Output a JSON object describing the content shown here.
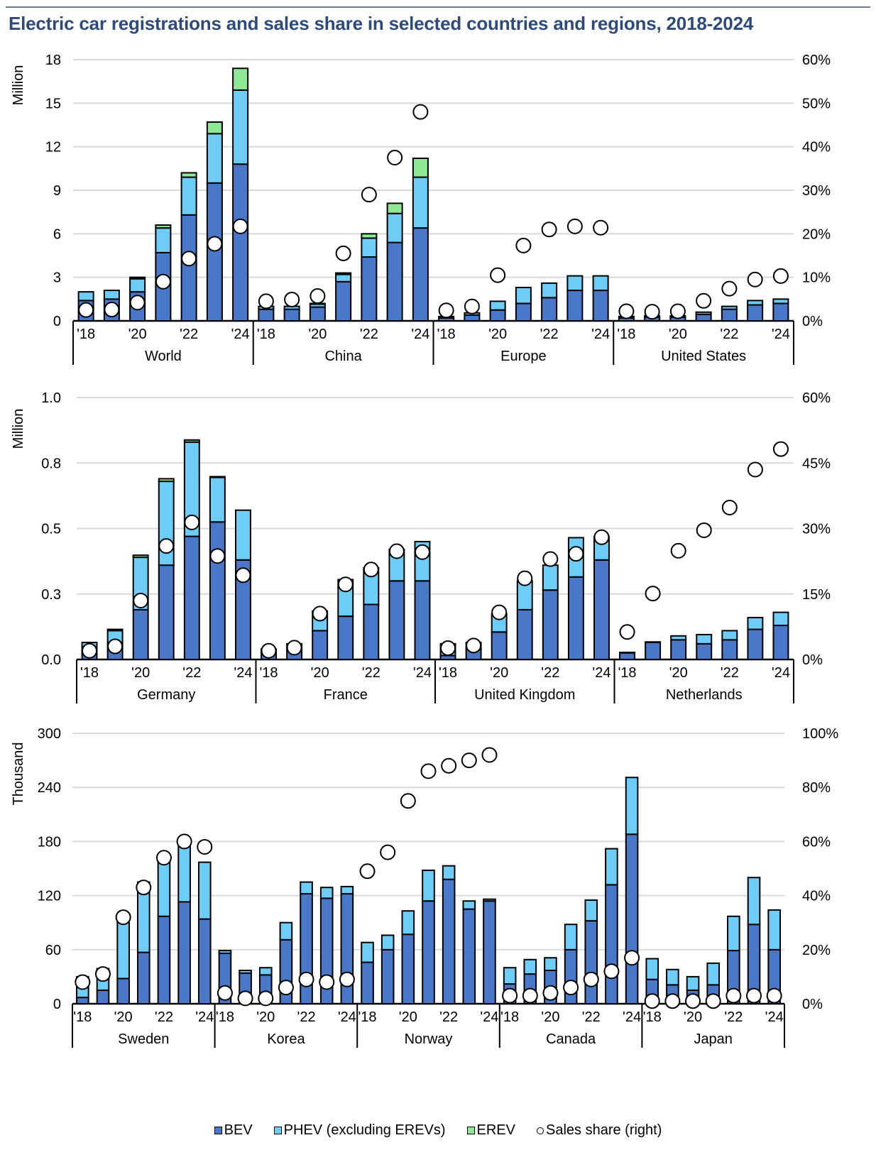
{
  "title": "Electric car registrations and sales share in selected countries and regions, 2018-2024",
  "colors": {
    "bev": "#4a78c9",
    "phev": "#6dcdf6",
    "erev": "#8ee894",
    "share_marker_fill": "#ffffff",
    "gridline": "#d9d9d9",
    "title": "#2d4a7a"
  },
  "legend": [
    {
      "key": "bev",
      "label": "BEV",
      "icon": "square-swatch"
    },
    {
      "key": "phev",
      "label": "PHEV (excluding EREVs)",
      "icon": "square-swatch"
    },
    {
      "key": "erev",
      "label": "EREV",
      "icon": "square-swatch"
    },
    {
      "key": "share",
      "label": "Sales share (right)",
      "icon": "circle-marker"
    }
  ],
  "chart_data": [
    {
      "type": "bar",
      "stacked": true,
      "secondary_type": "scatter",
      "ylabel": "Million",
      "ylim": [
        0,
        18
      ],
      "yticks": [
        "0",
        "3",
        "6",
        "9",
        "12",
        "15",
        "18"
      ],
      "y2lim": [
        0,
        60
      ],
      "y2ticks": [
        "0%",
        "10%",
        "20%",
        "30%",
        "40%",
        "50%",
        "60%"
      ],
      "x_tick_labels": [
        "'18",
        "",
        "'20",
        "",
        "'22",
        "",
        "'24"
      ],
      "years": [
        2018,
        2019,
        2020,
        2021,
        2022,
        2023,
        2024
      ],
      "grid": true,
      "groups": [
        {
          "name": "World",
          "bev": [
            1.4,
            1.5,
            2.0,
            4.7,
            7.3,
            9.5,
            10.8
          ],
          "phev": [
            0.6,
            0.6,
            0.9,
            1.7,
            2.6,
            3.4,
            5.1
          ],
          "erev": [
            0.0,
            0.0,
            0.1,
            0.2,
            0.3,
            0.8,
            1.5
          ],
          "share": [
            2.5,
            2.6,
            4.2,
            9.0,
            14.3,
            17.7,
            21.7
          ]
        },
        {
          "name": "China",
          "bev": [
            0.8,
            0.8,
            0.95,
            2.7,
            4.4,
            5.4,
            6.4
          ],
          "phev": [
            0.2,
            0.2,
            0.2,
            0.5,
            1.3,
            2.0,
            3.5
          ],
          "erev": [
            0.0,
            0.0,
            0.05,
            0.1,
            0.3,
            0.7,
            1.3
          ],
          "share": [
            4.5,
            4.9,
            5.7,
            15.5,
            29.0,
            37.5,
            48.0
          ]
        },
        {
          "name": "Europe",
          "bev": [
            0.2,
            0.4,
            0.75,
            1.2,
            1.6,
            2.1,
            2.1
          ],
          "phev": [
            0.1,
            0.15,
            0.6,
            1.1,
            1.0,
            1.0,
            1.0
          ],
          "erev": [
            0,
            0,
            0,
            0,
            0,
            0,
            0
          ],
          "share": [
            2.4,
            3.3,
            10.5,
            17.3,
            21.0,
            21.7,
            21.4
          ]
        },
        {
          "name": "United States",
          "bev": [
            0.2,
            0.25,
            0.25,
            0.45,
            0.8,
            1.1,
            1.2
          ],
          "phev": [
            0.1,
            0.1,
            0.1,
            0.15,
            0.2,
            0.3,
            0.3
          ],
          "erev": [
            0,
            0,
            0,
            0,
            0,
            0,
            0
          ],
          "share": [
            2.2,
            2.1,
            2.2,
            4.6,
            7.4,
            9.5,
            10.3
          ]
        }
      ]
    },
    {
      "type": "bar",
      "stacked": true,
      "secondary_type": "scatter",
      "ylabel": "Million",
      "ylim": [
        0,
        1.0
      ],
      "yticks": [
        "0.0",
        "0.3",
        "0.5",
        "0.8",
        "1.0"
      ],
      "y2lim": [
        0,
        60
      ],
      "y2ticks": [
        "0%",
        "15%",
        "30%",
        "45%",
        "60%"
      ],
      "x_tick_labels": [
        "'18",
        "",
        "'20",
        "",
        "'22",
        "",
        "'24"
      ],
      "years": [
        2018,
        2019,
        2020,
        2021,
        2022,
        2023,
        2024
      ],
      "grid": true,
      "groups": [
        {
          "name": "Germany",
          "bev": [
            0.035,
            0.065,
            0.19,
            0.36,
            0.47,
            0.525,
            0.38
          ],
          "phev": [
            0.03,
            0.045,
            0.2,
            0.32,
            0.36,
            0.17,
            0.19
          ],
          "erev": [
            0.0,
            0.005,
            0.008,
            0.01,
            0.008,
            0.003,
            0.0
          ],
          "share": [
            2.0,
            3.0,
            13.5,
            26.0,
            31.4,
            23.7,
            19.3
          ]
        },
        {
          "name": "France",
          "bev": [
            0.03,
            0.045,
            0.11,
            0.165,
            0.21,
            0.3,
            0.3
          ],
          "phev": [
            0.01,
            0.015,
            0.075,
            0.14,
            0.14,
            0.12,
            0.15
          ],
          "erev": [
            0,
            0,
            0,
            0,
            0,
            0,
            0
          ],
          "share": [
            2.0,
            2.7,
            10.5,
            17.2,
            20.6,
            24.8,
            24.6
          ]
        },
        {
          "name": "United Kingdom",
          "bev": [
            0.015,
            0.04,
            0.105,
            0.19,
            0.265,
            0.315,
            0.38
          ],
          "phev": [
            0.045,
            0.025,
            0.07,
            0.11,
            0.095,
            0.15,
            0.09
          ],
          "erev": [
            0,
            0,
            0,
            0,
            0,
            0,
            0
          ],
          "share": [
            2.6,
            3.2,
            10.8,
            18.6,
            23.0,
            24.2,
            28.0
          ]
        },
        {
          "name": "Netherlands",
          "bev": [
            0.025,
            0.065,
            0.075,
            0.06,
            0.075,
            0.115,
            0.13
          ],
          "phev": [
            0.002,
            0.002,
            0.015,
            0.035,
            0.035,
            0.045,
            0.05
          ],
          "erev": [
            0,
            0,
            0,
            0,
            0,
            0,
            0
          ],
          "share": [
            6.3,
            15.1,
            24.9,
            29.6,
            34.8,
            43.5,
            48.2
          ]
        }
      ]
    },
    {
      "type": "bar",
      "stacked": true,
      "secondary_type": "scatter",
      "ylabel": "Thousand",
      "ylim": [
        0,
        300
      ],
      "yticks": [
        "0",
        "60",
        "120",
        "180",
        "240",
        "300"
      ],
      "y2lim": [
        0,
        100
      ],
      "y2ticks": [
        "0%",
        "20%",
        "40%",
        "60%",
        "80%",
        "100%"
      ],
      "x_tick_labels": [
        "'18",
        "",
        "'20",
        "",
        "'22",
        "",
        "'24"
      ],
      "years": [
        2018,
        2019,
        2020,
        2021,
        2022,
        2023,
        2024
      ],
      "grid": true,
      "groups": [
        {
          "name": "Sweden",
          "bev": [
            7,
            15,
            28,
            57,
            97,
            113,
            94
          ],
          "phev": [
            23,
            24,
            70,
            78,
            65,
            62,
            63
          ],
          "erev": [
            0,
            0,
            0,
            0,
            0,
            0,
            0
          ],
          "share": [
            8,
            11,
            32,
            43,
            54,
            60,
            58
          ]
        },
        {
          "name": "Korea",
          "bev": [
            56,
            34,
            32,
            71,
            122,
            117,
            122
          ],
          "phev": [
            3,
            3,
            8,
            19,
            13,
            12,
            8
          ],
          "erev": [
            0,
            0,
            0,
            0,
            0,
            0,
            0
          ],
          "share": [
            4,
            2,
            2,
            6,
            9,
            8,
            9
          ]
        },
        {
          "name": "Norway",
          "bev": [
            46,
            60,
            77,
            114,
            138,
            105,
            114
          ],
          "phev": [
            22,
            16,
            26,
            34,
            15,
            9,
            2
          ],
          "erev": [
            0,
            0,
            0,
            0,
            0,
            0,
            0
          ],
          "share": [
            49,
            56,
            75,
            86,
            88,
            90,
            92
          ]
        },
        {
          "name": "Canada",
          "bev": [
            22,
            33,
            37,
            60,
            92,
            132,
            188
          ],
          "phev": [
            18,
            16,
            14,
            28,
            23,
            40,
            63
          ],
          "erev": [
            0,
            0,
            0,
            0,
            0,
            0,
            0
          ],
          "share": [
            3,
            3,
            4,
            6,
            9,
            12,
            17
          ]
        },
        {
          "name": "Japan",
          "bev": [
            27,
            21,
            15,
            21,
            59,
            88,
            60
          ],
          "phev": [
            23,
            17,
            15,
            24,
            38,
            52,
            44
          ],
          "erev": [
            0,
            0,
            0,
            0,
            0,
            0,
            0
          ],
          "share": [
            1,
            1,
            1,
            1,
            3,
            3,
            3
          ]
        }
      ]
    }
  ]
}
